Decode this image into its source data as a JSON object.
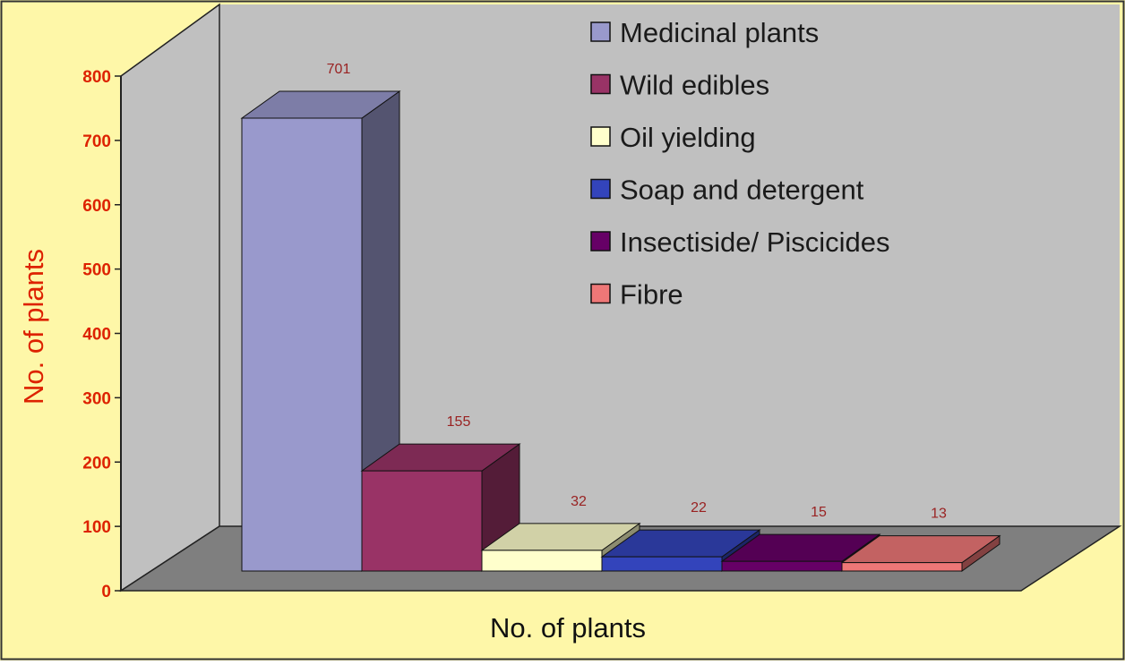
{
  "chart_data": {
    "type": "bar",
    "style": "3d",
    "title": "",
    "xlabel": "No. of plants",
    "ylabel": "No. of plants",
    "ylim": [
      0,
      800
    ],
    "yticks": [
      0,
      100,
      200,
      300,
      400,
      500,
      600,
      700,
      800
    ],
    "grid": false,
    "legend_position": "top-right",
    "categories": [
      "Medicinal plants",
      "Wild edibles",
      "Oil yielding",
      "Soap and detergent",
      "Insectiside/ Piscicides",
      "Fibre"
    ],
    "values": [
      701,
      155,
      32,
      22,
      15,
      13
    ],
    "data_labels": [
      "701",
      "155",
      "32",
      "22",
      "15",
      "13"
    ],
    "colors": [
      "#9999cc",
      "#993366",
      "#ffffcc",
      "#3344bb",
      "#660066",
      "#ee7777"
    ]
  },
  "style_colors": {
    "background": "#fef7a8",
    "wall": "#c0c0c0",
    "floor": "#7f7f7f",
    "axis_label_color": "#dd2200",
    "data_label_color": "#992222"
  }
}
